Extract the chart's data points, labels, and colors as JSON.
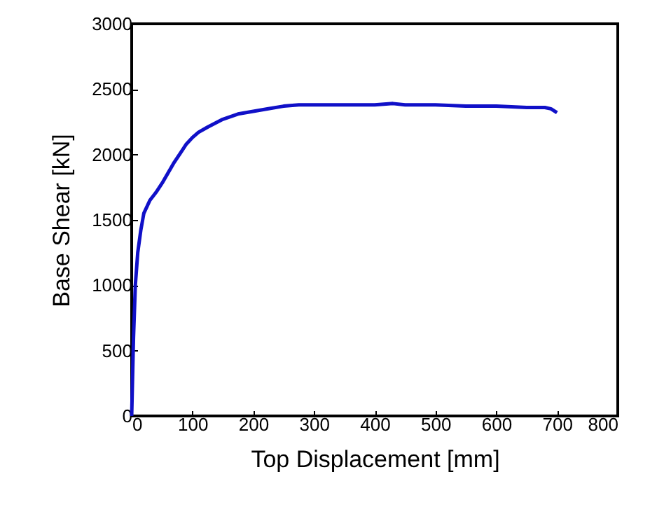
{
  "chart_data": {
    "type": "line",
    "xlabel": "Top Displacement [mm]",
    "ylabel": "Base Shear [kN]",
    "x": [
      0,
      3,
      6,
      10,
      15,
      20,
      30,
      40,
      50,
      60,
      70,
      80,
      90,
      100,
      110,
      125,
      150,
      175,
      200,
      225,
      250,
      275,
      300,
      350,
      390,
      400,
      430,
      450,
      500,
      550,
      600,
      650,
      680,
      690,
      700
    ],
    "series": [
      {
        "color": "#1010c8",
        "values": [
          0,
          600,
          1000,
          1250,
          1420,
          1550,
          1650,
          1710,
          1780,
          1860,
          1940,
          2010,
          2080,
          2130,
          2170,
          2210,
          2270,
          2310,
          2330,
          2350,
          2370,
          2380,
          2380,
          2380,
          2380,
          2380,
          2390,
          2380,
          2380,
          2370,
          2370,
          2360,
          2360,
          2350,
          2320
        ]
      }
    ],
    "xlim": [
      0,
      800
    ],
    "ylim": [
      0,
      3000
    ],
    "xticks": [
      0,
      100,
      200,
      300,
      400,
      500,
      600,
      700,
      800
    ],
    "yticks": [
      0,
      500,
      1000,
      1500,
      2000,
      2500,
      3000
    ],
    "grid": false,
    "line_style": "solid"
  }
}
